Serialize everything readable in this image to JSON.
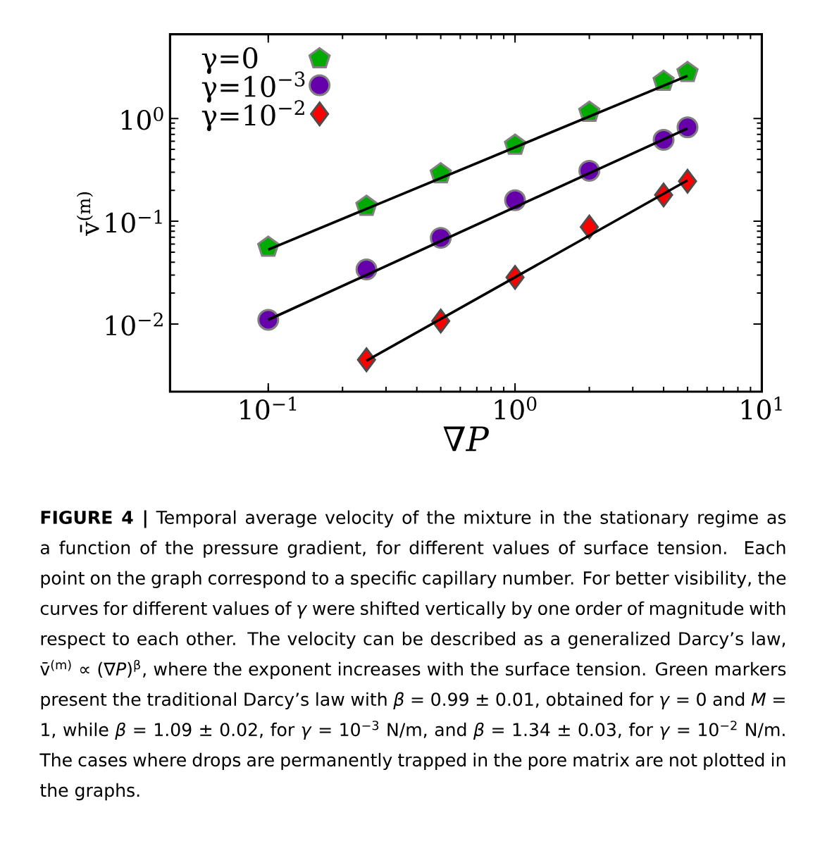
{
  "chart_data": {
    "type": "scatter",
    "xlabel": "∇*P*",
    "ylabel": "v̄$^{(m)}$",
    "log": "xy",
    "legend": "top left",
    "xlim": [
      0.04,
      10
    ],
    "ylim": [
      0.0022,
      6.6
    ],
    "xticks": [
      {
        "value": 0.1,
        "label": "10$^{−1}$"
      },
      {
        "value": 1,
        "label": "10$^{0}$"
      },
      {
        "value": 10,
        "label": "10$^{1}$"
      }
    ],
    "yticks": [
      {
        "value": 0.01,
        "label": "10$^{−2}$"
      },
      {
        "value": 0.1,
        "label": "10$^{−1}$"
      },
      {
        "value": 1,
        "label": "10$^{0}$"
      }
    ],
    "series": [
      {
        "name": "γ=0",
        "color": "#00aa00",
        "x": [
          0.1,
          0.25,
          0.5,
          1,
          2,
          4,
          5
        ],
        "values": [
          0.056,
          0.14,
          0.29,
          0.55,
          1.15,
          2.3,
          2.8
        ]
      },
      {
        "name": "γ=10$^{−3}$",
        "marker": "circle",
        "color": "#6600aa",
        "x": [
          0.1,
          0.25,
          0.5,
          1,
          2,
          4,
          5
        ],
        "values": [
          0.011,
          0.034,
          0.069,
          0.16,
          0.31,
          0.62,
          0.82
        ]
      },
      {
        "name": "γ=10$^{−2}$",
        "marker": "diamond",
        "color": "#ff0000",
        "x": [
          0.25,
          0.5,
          1,
          2,
          4,
          5
        ],
        "values": [
          0.0045,
          0.0107,
          0.0285,
          0.088,
          0.18,
          0.245
        ]
      },
      {
        "type": "line",
        "color": "#000000",
        "x": [
          0.1,
          5
        ],
        "values": [
          0.053,
          2.6
        ]
      },
      {
        "type": "line",
        "color": "#000000",
        "x": [
          0.1,
          5
        ],
        "values": [
          0.011,
          0.8
        ]
      },
      {
        "type": "line",
        "color": "#000000",
        "x": [
          0.25,
          5
        ],
        "values": [
          0.0044,
          0.25
        ]
      }
    ],
    "annotations": [
      "**FIGURE 4 |** Temporal average velocity of the mixture in the stationary regime as a function of the pressure gradient, for different values of surface tension. Each point on the graph correspond to a specific capillary number. For better visibility, the curves for different values of *γ* were shifted vertically by one order of magnitude with respect to each other. The velocity can be described as a generalized Darcy’s law, v̄$^{(m)}$ ∝ (∇*P*)$^{β}$, where the exponent increases with the surface tension. Green markers present the traditional Darcy’s law with *β* = 0.99 ± 0.01, obtained for *γ* = 0 and *M* = 1, while *β* = 1.09 ± 0.02, for *γ* = 10$^{−3}$ N/m, and *β* = 1.34 ± 0.03, for *γ* = 10$^{−2}$ N/m. The cases where drops are permanently trapped in the pore matrix are not plotted in the graphs."
    ]
  }
}
